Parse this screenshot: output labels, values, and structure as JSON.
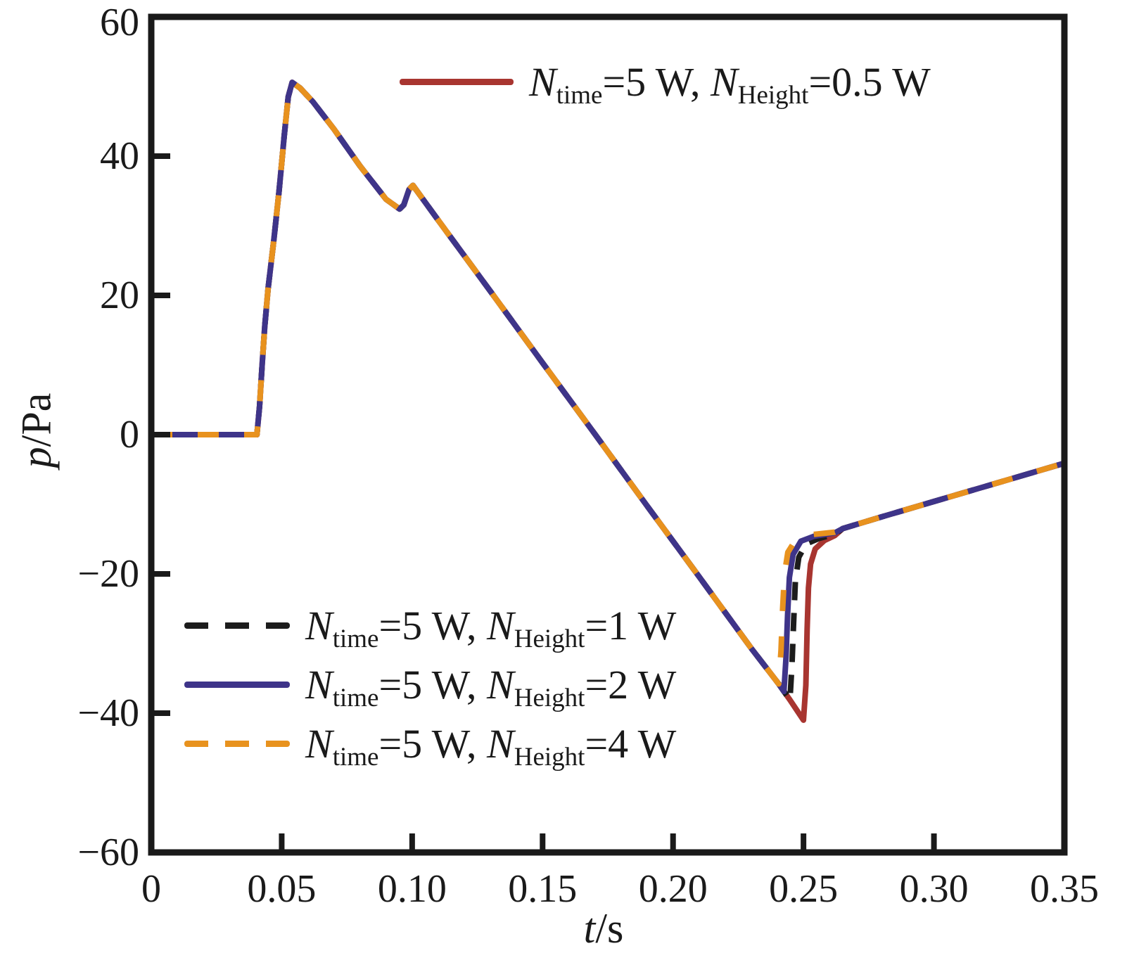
{
  "figure": {
    "xlabel": {
      "var": "t",
      "rest": "/s"
    },
    "ylabel": {
      "var": "p",
      "rest": "/Pa"
    }
  },
  "axes": {
    "xticks": [
      "0",
      "0.05",
      "0.10",
      "0.15",
      "0.20",
      "0.25",
      "0.30",
      "0.35"
    ],
    "xtick_values": [
      0,
      0.05,
      0.1,
      0.15,
      0.2,
      0.25,
      0.3,
      0.35
    ],
    "yticks": [
      "60",
      "40",
      "20",
      "0",
      "−20",
      "−40",
      "−60"
    ],
    "ytick_values": [
      60,
      40,
      20,
      0,
      -20,
      -40,
      -60
    ],
    "frame_color": "#1a1a1a"
  },
  "legend": {
    "top": {
      "n1": "N",
      "sub1": "time",
      "mid": "=5 W, ",
      "n2": "N",
      "sub2": "Height",
      "tail": "=0.5 W",
      "color": "#A83530",
      "dash": false
    },
    "bottom": [
      {
        "n1": "N",
        "sub1": "time",
        "mid": "=5 W, ",
        "n2": "N",
        "sub2": "Height",
        "tail": "=1 W",
        "color": "#1C1C1C",
        "dash": true
      },
      {
        "n1": "N",
        "sub1": "time",
        "mid": "=5 W, ",
        "n2": "N",
        "sub2": "Height",
        "tail": "=2 W",
        "color": "#3E3489",
        "dash": false
      },
      {
        "n1": "N",
        "sub1": "time",
        "mid": "=5 W, ",
        "n2": "N",
        "sub2": "Height",
        "tail": "=4 W",
        "color": "#E8921E",
        "dash": true
      }
    ]
  },
  "chart_data": {
    "type": "line",
    "title": "",
    "xlabel": "t/s",
    "ylabel": "p/Pa",
    "xlim": [
      0,
      0.35
    ],
    "ylim": [
      -60,
      60
    ],
    "grid": false,
    "legend_position": "inside",
    "series": [
      {
        "name": "N_time=5 W, N_Height=0.5 W",
        "color": "#A83530",
        "style": "solid",
        "points": [
          [
            0,
            0
          ],
          [
            0.02,
            0
          ],
          [
            0.0405,
            0
          ],
          [
            0.0415,
            4
          ],
          [
            0.0425,
            10
          ],
          [
            0.0435,
            15.5
          ],
          [
            0.0448,
            21
          ],
          [
            0.047,
            28
          ],
          [
            0.049,
            35
          ],
          [
            0.051,
            43
          ],
          [
            0.0525,
            48.5
          ],
          [
            0.054,
            50.6
          ],
          [
            0.057,
            49.8
          ],
          [
            0.062,
            47.8
          ],
          [
            0.07,
            43.9
          ],
          [
            0.08,
            38.6
          ],
          [
            0.09,
            33.8
          ],
          [
            0.0952,
            32.4
          ],
          [
            0.0968,
            33.0
          ],
          [
            0.0988,
            35.2
          ],
          [
            0.1003,
            35.8
          ],
          [
            0.11,
            30.8
          ],
          [
            0.13,
            20.6
          ],
          [
            0.15,
            10.3
          ],
          [
            0.17,
            0.1
          ],
          [
            0.19,
            -10.2
          ],
          [
            0.21,
            -20.4
          ],
          [
            0.23,
            -30.7
          ],
          [
            0.2405,
            -35.8
          ],
          [
            0.2448,
            -38.1
          ],
          [
            0.25,
            -41.0
          ],
          [
            0.2509,
            -36
          ],
          [
            0.2514,
            -28
          ],
          [
            0.2519,
            -22
          ],
          [
            0.2527,
            -18.6
          ],
          [
            0.2545,
            -16.4
          ],
          [
            0.258,
            -15.2
          ],
          [
            0.262,
            -14.5
          ],
          [
            0.265,
            -13.5
          ],
          [
            0.28,
            -11.8
          ],
          [
            0.3,
            -9.6
          ],
          [
            0.32,
            -7.4
          ],
          [
            0.34,
            -5.2
          ],
          [
            0.35,
            -4.1
          ]
        ]
      },
      {
        "name": "N_time=5 W, N_Height=1 W",
        "color": "#1C1C1C",
        "style": "dashed",
        "points": [
          [
            0,
            0
          ],
          [
            0.02,
            0
          ],
          [
            0.0405,
            0
          ],
          [
            0.0415,
            4
          ],
          [
            0.0425,
            10
          ],
          [
            0.0435,
            15.5
          ],
          [
            0.0448,
            21
          ],
          [
            0.047,
            28
          ],
          [
            0.049,
            35
          ],
          [
            0.051,
            43
          ],
          [
            0.0525,
            48.5
          ],
          [
            0.054,
            50.6
          ],
          [
            0.057,
            49.8
          ],
          [
            0.062,
            47.8
          ],
          [
            0.07,
            43.9
          ],
          [
            0.08,
            38.6
          ],
          [
            0.09,
            33.8
          ],
          [
            0.0952,
            32.4
          ],
          [
            0.0968,
            33.0
          ],
          [
            0.0988,
            35.2
          ],
          [
            0.1003,
            35.8
          ],
          [
            0.11,
            30.8
          ],
          [
            0.13,
            20.6
          ],
          [
            0.15,
            10.3
          ],
          [
            0.17,
            0.1
          ],
          [
            0.19,
            -10.2
          ],
          [
            0.21,
            -20.4
          ],
          [
            0.23,
            -30.7
          ],
          [
            0.2405,
            -35.8
          ],
          [
            0.2448,
            -38.1
          ],
          [
            0.2456,
            -33
          ],
          [
            0.2462,
            -27
          ],
          [
            0.2469,
            -21
          ],
          [
            0.2482,
            -17.6
          ],
          [
            0.251,
            -15.7
          ],
          [
            0.256,
            -14.9
          ],
          [
            0.262,
            -14.3
          ],
          [
            0.265,
            -13.5
          ],
          [
            0.28,
            -11.8
          ],
          [
            0.3,
            -9.6
          ],
          [
            0.32,
            -7.4
          ],
          [
            0.34,
            -5.2
          ],
          [
            0.35,
            -4.1
          ]
        ]
      },
      {
        "name": "N_time=5 W, N_Height=2 W",
        "color": "#3E3489",
        "style": "solid",
        "points": [
          [
            0,
            0
          ],
          [
            0.02,
            0
          ],
          [
            0.0405,
            0
          ],
          [
            0.0415,
            4
          ],
          [
            0.0425,
            10
          ],
          [
            0.0435,
            15.5
          ],
          [
            0.0448,
            21
          ],
          [
            0.047,
            28
          ],
          [
            0.049,
            35
          ],
          [
            0.051,
            43
          ],
          [
            0.0525,
            48.5
          ],
          [
            0.054,
            50.6
          ],
          [
            0.057,
            49.8
          ],
          [
            0.062,
            47.8
          ],
          [
            0.07,
            43.9
          ],
          [
            0.08,
            38.6
          ],
          [
            0.09,
            33.8
          ],
          [
            0.0952,
            32.4
          ],
          [
            0.0968,
            33.0
          ],
          [
            0.0988,
            35.2
          ],
          [
            0.1003,
            35.8
          ],
          [
            0.11,
            30.8
          ],
          [
            0.13,
            20.6
          ],
          [
            0.15,
            10.3
          ],
          [
            0.17,
            0.1
          ],
          [
            0.19,
            -10.2
          ],
          [
            0.21,
            -20.4
          ],
          [
            0.23,
            -30.7
          ],
          [
            0.2405,
            -35.8
          ],
          [
            0.2425,
            -36.9
          ],
          [
            0.2433,
            -32
          ],
          [
            0.2439,
            -26
          ],
          [
            0.2446,
            -20.5
          ],
          [
            0.246,
            -17.2
          ],
          [
            0.249,
            -15.3
          ],
          [
            0.254,
            -14.6
          ],
          [
            0.262,
            -14.1
          ],
          [
            0.265,
            -13.5
          ],
          [
            0.28,
            -11.8
          ],
          [
            0.3,
            -9.6
          ],
          [
            0.32,
            -7.4
          ],
          [
            0.34,
            -5.2
          ],
          [
            0.35,
            -4.1
          ]
        ]
      },
      {
        "name": "N_time=5 W, N_Height=4 W",
        "color": "#E8921E",
        "style": "dashed",
        "points": [
          [
            0,
            0
          ],
          [
            0.02,
            0
          ],
          [
            0.0405,
            0
          ],
          [
            0.0415,
            4
          ],
          [
            0.0425,
            10
          ],
          [
            0.0435,
            15.5
          ],
          [
            0.0448,
            21
          ],
          [
            0.047,
            28
          ],
          [
            0.049,
            35
          ],
          [
            0.051,
            43
          ],
          [
            0.0525,
            48.5
          ],
          [
            0.054,
            50.6
          ],
          [
            0.057,
            49.8
          ],
          [
            0.062,
            47.8
          ],
          [
            0.07,
            43.9
          ],
          [
            0.08,
            38.6
          ],
          [
            0.09,
            33.8
          ],
          [
            0.0952,
            32.4
          ],
          [
            0.0968,
            33.0
          ],
          [
            0.0988,
            35.2
          ],
          [
            0.1003,
            35.8
          ],
          [
            0.11,
            30.8
          ],
          [
            0.13,
            20.6
          ],
          [
            0.15,
            10.3
          ],
          [
            0.17,
            0.1
          ],
          [
            0.19,
            -10.2
          ],
          [
            0.21,
            -20.4
          ],
          [
            0.23,
            -30.7
          ],
          [
            0.2405,
            -35.8
          ],
          [
            0.2414,
            -31
          ],
          [
            0.242,
            -25
          ],
          [
            0.2427,
            -20
          ],
          [
            0.244,
            -16.9
          ],
          [
            0.247,
            -15.1
          ],
          [
            0.252,
            -14.4
          ],
          [
            0.262,
            -14.0
          ],
          [
            0.265,
            -13.5
          ],
          [
            0.28,
            -11.8
          ],
          [
            0.3,
            -9.6
          ],
          [
            0.32,
            -7.4
          ],
          [
            0.34,
            -5.2
          ],
          [
            0.35,
            -4.1
          ]
        ]
      }
    ]
  }
}
